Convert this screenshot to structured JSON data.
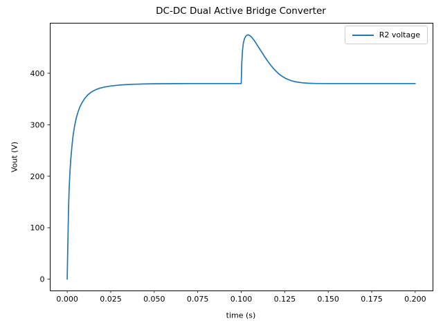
{
  "chart_data": {
    "type": "line",
    "title": "DC-DC Dual Active Bridge Converter",
    "xlabel": "time (s)",
    "ylabel": "Vout (V)",
    "xlim": [
      -0.01,
      0.21
    ],
    "ylim": [
      -22,
      498
    ],
    "grid": false,
    "legend_position": "upper right",
    "x_ticks": [
      {
        "value": 0.0,
        "label": "0.000"
      },
      {
        "value": 0.025,
        "label": "0.025"
      },
      {
        "value": 0.05,
        "label": "0.050"
      },
      {
        "value": 0.075,
        "label": "0.075"
      },
      {
        "value": 0.1,
        "label": "0.100"
      },
      {
        "value": 0.125,
        "label": "0.125"
      },
      {
        "value": 0.15,
        "label": "0.150"
      },
      {
        "value": 0.175,
        "label": "0.175"
      },
      {
        "value": 0.2,
        "label": "0.200"
      }
    ],
    "y_ticks": [
      {
        "value": 0,
        "label": "0"
      },
      {
        "value": 100,
        "label": "100"
      },
      {
        "value": 200,
        "label": "200"
      },
      {
        "value": 300,
        "label": "300"
      },
      {
        "value": 400,
        "label": "400"
      }
    ],
    "series": [
      {
        "name": "R2 voltage",
        "color": "#1f77b4",
        "points": [
          [
            0.0,
            0
          ],
          [
            0.0002,
            40
          ],
          [
            0.0005,
            95
          ],
          [
            0.0008,
            140
          ],
          [
            0.0011,
            175
          ],
          [
            0.0015,
            205
          ],
          [
            0.002,
            232
          ],
          [
            0.0027,
            258
          ],
          [
            0.0034,
            280
          ],
          [
            0.0042,
            297
          ],
          [
            0.0051,
            312
          ],
          [
            0.0061,
            324
          ],
          [
            0.0072,
            334
          ],
          [
            0.0085,
            343
          ],
          [
            0.01,
            351
          ],
          [
            0.0118,
            358
          ],
          [
            0.0138,
            363.5
          ],
          [
            0.016,
            367.5
          ],
          [
            0.0185,
            370.8
          ],
          [
            0.0215,
            373.3
          ],
          [
            0.025,
            375.3
          ],
          [
            0.029,
            376.8
          ],
          [
            0.0335,
            377.9
          ],
          [
            0.0385,
            378.7
          ],
          [
            0.044,
            379.2
          ],
          [
            0.05,
            379.6
          ],
          [
            0.058,
            379.8
          ],
          [
            0.068,
            380
          ],
          [
            0.08,
            380
          ],
          [
            0.09,
            380
          ],
          [
            0.1,
            380
          ],
          [
            0.1003,
            420
          ],
          [
            0.1007,
            444
          ],
          [
            0.1012,
            458
          ],
          [
            0.1018,
            466.5
          ],
          [
            0.1025,
            471.5
          ],
          [
            0.1032,
            474
          ],
          [
            0.1039,
            474.8
          ],
          [
            0.1048,
            473.5
          ],
          [
            0.106,
            470
          ],
          [
            0.1072,
            465
          ],
          [
            0.1085,
            458.5
          ],
          [
            0.11,
            450.5
          ],
          [
            0.1118,
            441
          ],
          [
            0.1136,
            431.5
          ],
          [
            0.1152,
            423.5
          ],
          [
            0.117,
            415.5
          ],
          [
            0.119,
            407.5
          ],
          [
            0.1212,
            400
          ],
          [
            0.1235,
            394
          ],
          [
            0.1258,
            389.5
          ],
          [
            0.1284,
            386
          ],
          [
            0.1315,
            383.3
          ],
          [
            0.135,
            381.5
          ],
          [
            0.139,
            380.6
          ],
          [
            0.143,
            380.2
          ],
          [
            0.148,
            380
          ],
          [
            0.155,
            380
          ],
          [
            0.165,
            380
          ],
          [
            0.175,
            380
          ],
          [
            0.185,
            380
          ],
          [
            0.195,
            380
          ],
          [
            0.2,
            380
          ]
        ]
      }
    ]
  }
}
